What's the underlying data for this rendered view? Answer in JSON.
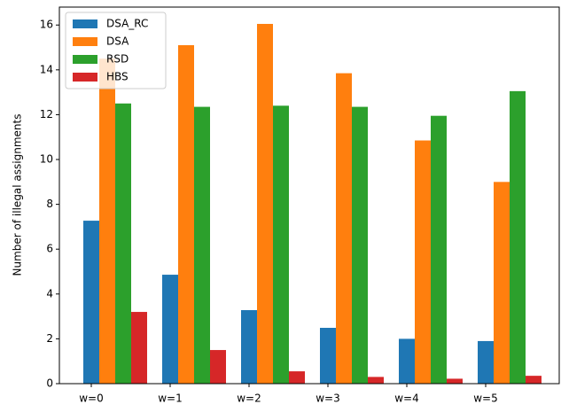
{
  "chart_data": {
    "type": "bar",
    "y_label": "Number of illegal assignments",
    "categories": [
      "w=0",
      "w=1",
      "w=2",
      "w=3",
      "w=4",
      "w=5"
    ],
    "series": [
      {
        "name": "DSA_RC",
        "color": "#1f77b4",
        "values": [
          7.27,
          4.86,
          3.28,
          2.49,
          2.0,
          1.9
        ]
      },
      {
        "name": "DSA",
        "color": "#ff7f0e",
        "values": [
          14.5,
          15.1,
          16.05,
          13.85,
          10.85,
          9.0
        ]
      },
      {
        "name": "RSD",
        "color": "#2ca02c",
        "values": [
          12.5,
          12.35,
          12.4,
          12.35,
          11.95,
          13.05
        ]
      },
      {
        "name": "HBS",
        "color": "#d62728",
        "values": [
          3.2,
          1.5,
          0.55,
          0.3,
          0.22,
          0.35
        ]
      }
    ],
    "ylim": [
      0,
      16.8
    ],
    "yticks": [
      0,
      2,
      4,
      6,
      8,
      10,
      12,
      14,
      16
    ],
    "legend": "upper left"
  }
}
